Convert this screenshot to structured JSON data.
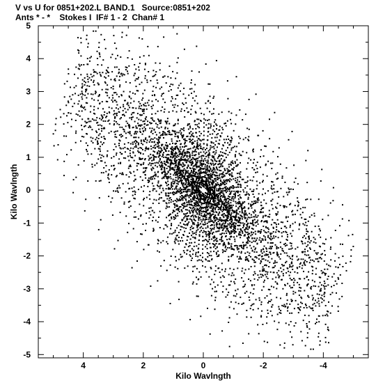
{
  "header": {
    "line1": "V vs U for 0851+202.L BAND.1   Source:0851+202",
    "line2": "Ants * - *    Stokes I  IF# 1 - 2  Chan# 1"
  },
  "chart_data": {
    "type": "scatter",
    "title": "V vs U for 0851+202.L BAND.1   Source:0851+202",
    "subtitle": "Ants * - *    Stokes I  IF# 1 - 2  Chan# 1",
    "xlabel": "Kilo Wavlngth",
    "ylabel": "Kilo Wavlngth",
    "xlim": [
      5.5,
      -5.5
    ],
    "ylim": [
      -5.1,
      5.0
    ],
    "x_ticks": [
      4,
      2,
      0,
      -2,
      -4
    ],
    "x_tick_labels": [
      "4",
      "2",
      "0",
      "-2",
      "-4"
    ],
    "y_ticks": [
      5,
      4,
      3,
      2,
      1,
      0,
      -1,
      -2,
      -3,
      -4,
      -5
    ],
    "y_tick_labels": [
      "5",
      "4",
      "3",
      "2",
      "1",
      "0",
      "-1",
      "-2",
      "-3",
      "-4",
      "-5"
    ],
    "grid": false,
    "marker_color": "#000000",
    "point_cloud": "dense uv-coverage tracks, point-symmetric about the origin, spanning roughly U -5.4..5.4 and V -4.8..4.8 kilo-wavelengths"
  }
}
